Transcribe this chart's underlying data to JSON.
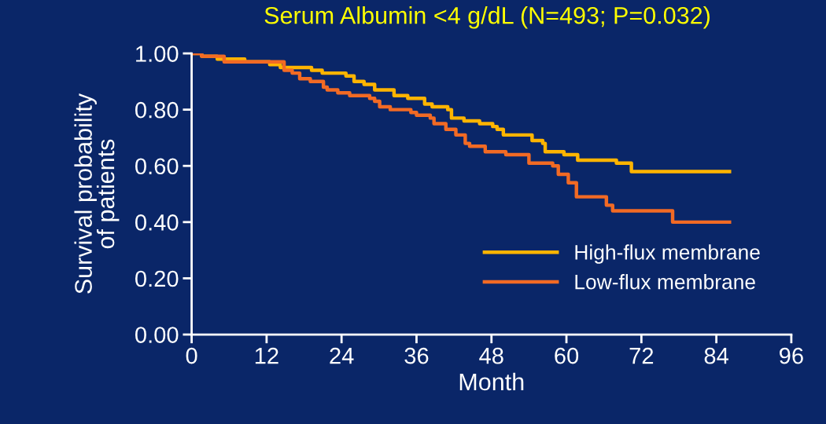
{
  "chart_data": {
    "type": "step",
    "title": "Serum Albumin <4 g/dL (N=493; P=0.032)",
    "xlabel": "Month",
    "ylabel": "Survival probability\nof patients",
    "xlim": [
      0,
      96
    ],
    "xticks": [
      0,
      12,
      24,
      36,
      48,
      60,
      72,
      84,
      96
    ],
    "ylim": [
      0,
      1
    ],
    "yticks": [
      {
        "value": 0,
        "label": "0.00"
      },
      {
        "value": 0.2,
        "label": "0.20"
      },
      {
        "value": 0.4,
        "label": "0.40"
      },
      {
        "value": 0.6,
        "label": "0.60"
      },
      {
        "value": 0.8,
        "label": "0.80"
      },
      {
        "value": 1,
        "label": "1.00"
      }
    ],
    "grid": false,
    "legend": "bottom right",
    "series": [
      {
        "name": "High-flux membrane",
        "color": "#ffb400",
        "x": [
          0,
          1.6,
          3.3,
          4.1,
          8.5,
          12.5,
          14.2,
          16.3,
          19.2,
          20.9,
          22.2,
          24.7,
          26,
          27.6,
          29.3,
          32.4,
          34.6,
          37.3,
          38.5,
          41,
          41.6,
          43.6,
          46.1,
          48.2,
          48.9,
          49.9,
          54.5,
          56.2,
          56.6,
          59.6,
          61.8,
          68,
          70.4,
          86.1
        ],
        "values": [
          1.0,
          0.99,
          0.99,
          0.98,
          0.97,
          0.96,
          0.95,
          0.95,
          0.94,
          0.93,
          0.93,
          0.92,
          0.9,
          0.89,
          0.87,
          0.85,
          0.84,
          0.82,
          0.81,
          0.8,
          0.77,
          0.76,
          0.75,
          0.74,
          0.73,
          0.71,
          0.69,
          0.68,
          0.65,
          0.64,
          0.62,
          0.61,
          0.58,
          0.58
        ]
      },
      {
        "name": "Low-flux membrane",
        "color": "#f26a24",
        "x": [
          0,
          1.6,
          3.3,
          5.2,
          8.5,
          14.8,
          16.1,
          17.3,
          19,
          21.1,
          21.7,
          23.4,
          25.3,
          28.5,
          29.3,
          30.1,
          31.8,
          35.1,
          36,
          38.2,
          38.8,
          40.7,
          42.3,
          43.8,
          44.5,
          47,
          50.3,
          54,
          57.8,
          58.7,
          60.3,
          61.6,
          66.4,
          67.4,
          77,
          86.1
        ],
        "values": [
          1.0,
          0.99,
          0.99,
          0.97,
          0.97,
          0.94,
          0.93,
          0.91,
          0.9,
          0.88,
          0.87,
          0.86,
          0.85,
          0.84,
          0.83,
          0.81,
          0.8,
          0.79,
          0.78,
          0.77,
          0.75,
          0.73,
          0.71,
          0.68,
          0.67,
          0.65,
          0.64,
          0.61,
          0.6,
          0.57,
          0.54,
          0.49,
          0.46,
          0.44,
          0.4,
          0.4
        ]
      }
    ]
  }
}
